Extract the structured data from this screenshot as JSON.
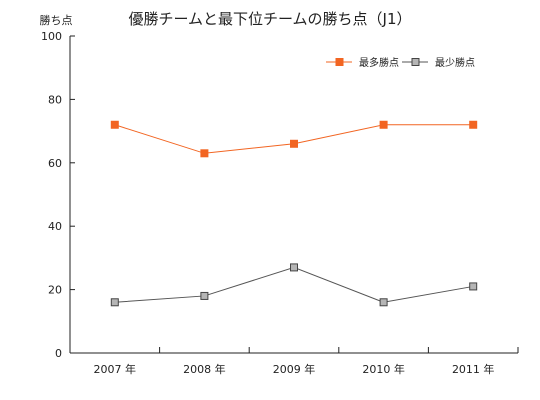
{
  "chart_data": {
    "type": "line",
    "title": "優勝チームと最下位チームの勝ち点（J1）",
    "ylabel": "勝ち点",
    "xlabel": "",
    "categories": [
      "2007 年",
      "2008 年",
      "2009 年",
      "2010 年",
      "2011 年"
    ],
    "ylim": [
      0,
      100
    ],
    "yticks": [
      0,
      20,
      40,
      60,
      80,
      100
    ],
    "grid": false,
    "legend_position": "top-right",
    "series": [
      {
        "name": "最多勝点",
        "values": [
          72,
          63,
          66,
          72,
          72
        ],
        "color": "#f26522",
        "marker": "square-filled"
      },
      {
        "name": "最少勝点",
        "values": [
          16,
          18,
          27,
          16,
          21
        ],
        "color": "#555555",
        "marker": "square-gray"
      }
    ]
  }
}
